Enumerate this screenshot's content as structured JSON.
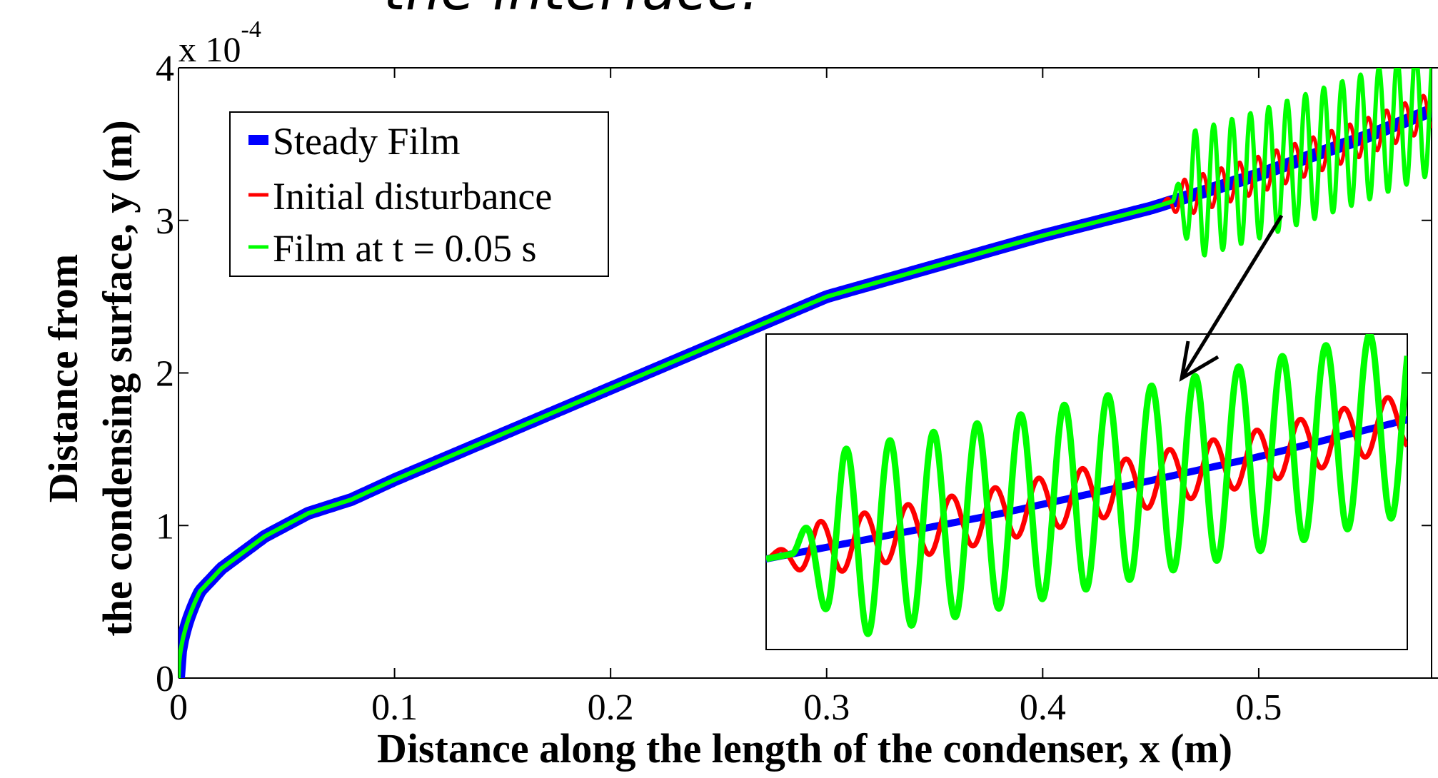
{
  "page": {
    "title": "the interface."
  },
  "chart_data": {
    "type": "line",
    "title": "",
    "xlabel": "Distance along the length of the condenser, x (m)",
    "ylabel_line1": "Distance from",
    "ylabel_line2": "the condensing surface, y (m)",
    "y_multiplier": "x 10",
    "y_multiplier_exp": "-4",
    "xlim": [
      0,
      0.58
    ],
    "ylim": [
      0,
      4
    ],
    "x_ticks": [
      0,
      0.1,
      0.2,
      0.3,
      0.4,
      0.5
    ],
    "x_tick_labels": [
      "0",
      "0.1",
      "0.2",
      "0.3",
      "0.4",
      "0.5"
    ],
    "y_ticks": [
      0,
      1,
      2,
      3,
      4
    ],
    "y_tick_labels": [
      "0",
      "1",
      "2",
      "3",
      "4"
    ],
    "grid": false,
    "legend_position": "top-left",
    "series": [
      {
        "name": "Steady Film",
        "color": "#0000ff",
        "x": [
          0,
          0.001,
          0.005,
          0.01,
          0.02,
          0.04,
          0.06,
          0.08,
          0.1,
          0.15,
          0.2,
          0.25,
          0.3,
          0.35,
          0.4,
          0.45,
          0.5,
          0.55,
          0.58
        ],
        "y": [
          0.0,
          0.23,
          0.45,
          0.57,
          0.72,
          0.93,
          1.08,
          1.17,
          1.3,
          1.6,
          1.9,
          2.2,
          2.5,
          2.7,
          2.9,
          3.08,
          3.3,
          3.55,
          3.72
        ]
      },
      {
        "name": "Initial disturbance",
        "color": "#ff0000",
        "note_visible": false,
        "wave_start_x": 0.455,
        "amplitude_1e4": 0.12,
        "wavelength_m": 0.0085
      },
      {
        "name": "Film at t = 0.05 s",
        "color": "#00ff00",
        "wave_start_x": 0.46,
        "amplitude_1e4": 0.42,
        "wavelength_m": 0.0085
      }
    ],
    "inset": {
      "description_visible": false,
      "x_range": [
        0.455,
        0.58
      ]
    }
  }
}
